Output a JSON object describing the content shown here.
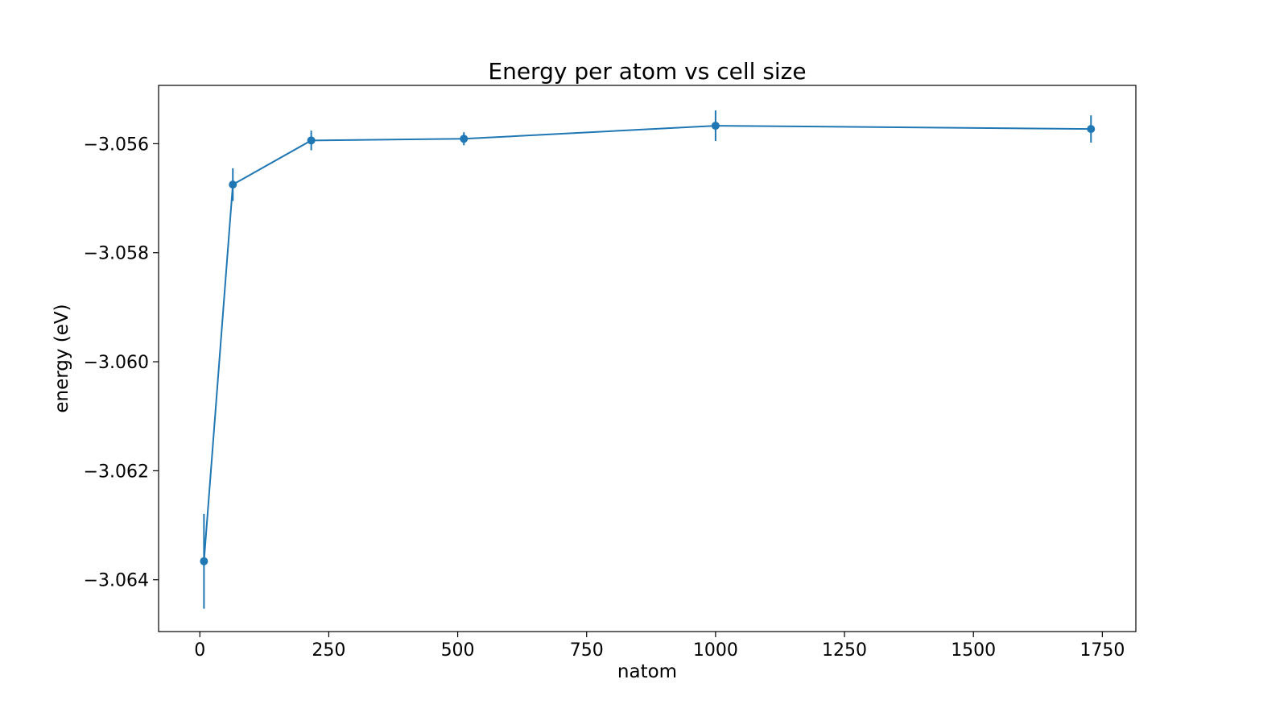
{
  "chart_data": {
    "type": "line",
    "title": "Energy per atom vs cell size",
    "xlabel": "natom",
    "ylabel": "energy (eV)",
    "xlim": [
      -80,
      1815
    ],
    "ylim": [
      -3.06495,
      -3.05493
    ],
    "x_ticks": [
      0,
      250,
      500,
      750,
      1000,
      1250,
      1500,
      1750
    ],
    "x_tick_labels": [
      "0",
      "250",
      "500",
      "750",
      "1000",
      "1250",
      "1500",
      "1750"
    ],
    "y_ticks": [
      -3.056,
      -3.058,
      -3.06,
      -3.062,
      -3.064
    ],
    "y_tick_labels": [
      "−3.056",
      "−3.058",
      "−3.060",
      "−3.062",
      "−3.064"
    ],
    "grid": false,
    "color": "#1f77b4",
    "series": [
      {
        "x": [
          8,
          64,
          216,
          512,
          1000,
          1728
        ],
        "y": [
          -3.06366,
          -3.05675,
          -3.05594,
          -3.05591,
          -3.05567,
          -3.05573
        ],
        "yerr": [
          0.00087,
          0.0003,
          0.00018,
          0.00012,
          0.00028,
          0.00025
        ]
      }
    ]
  }
}
